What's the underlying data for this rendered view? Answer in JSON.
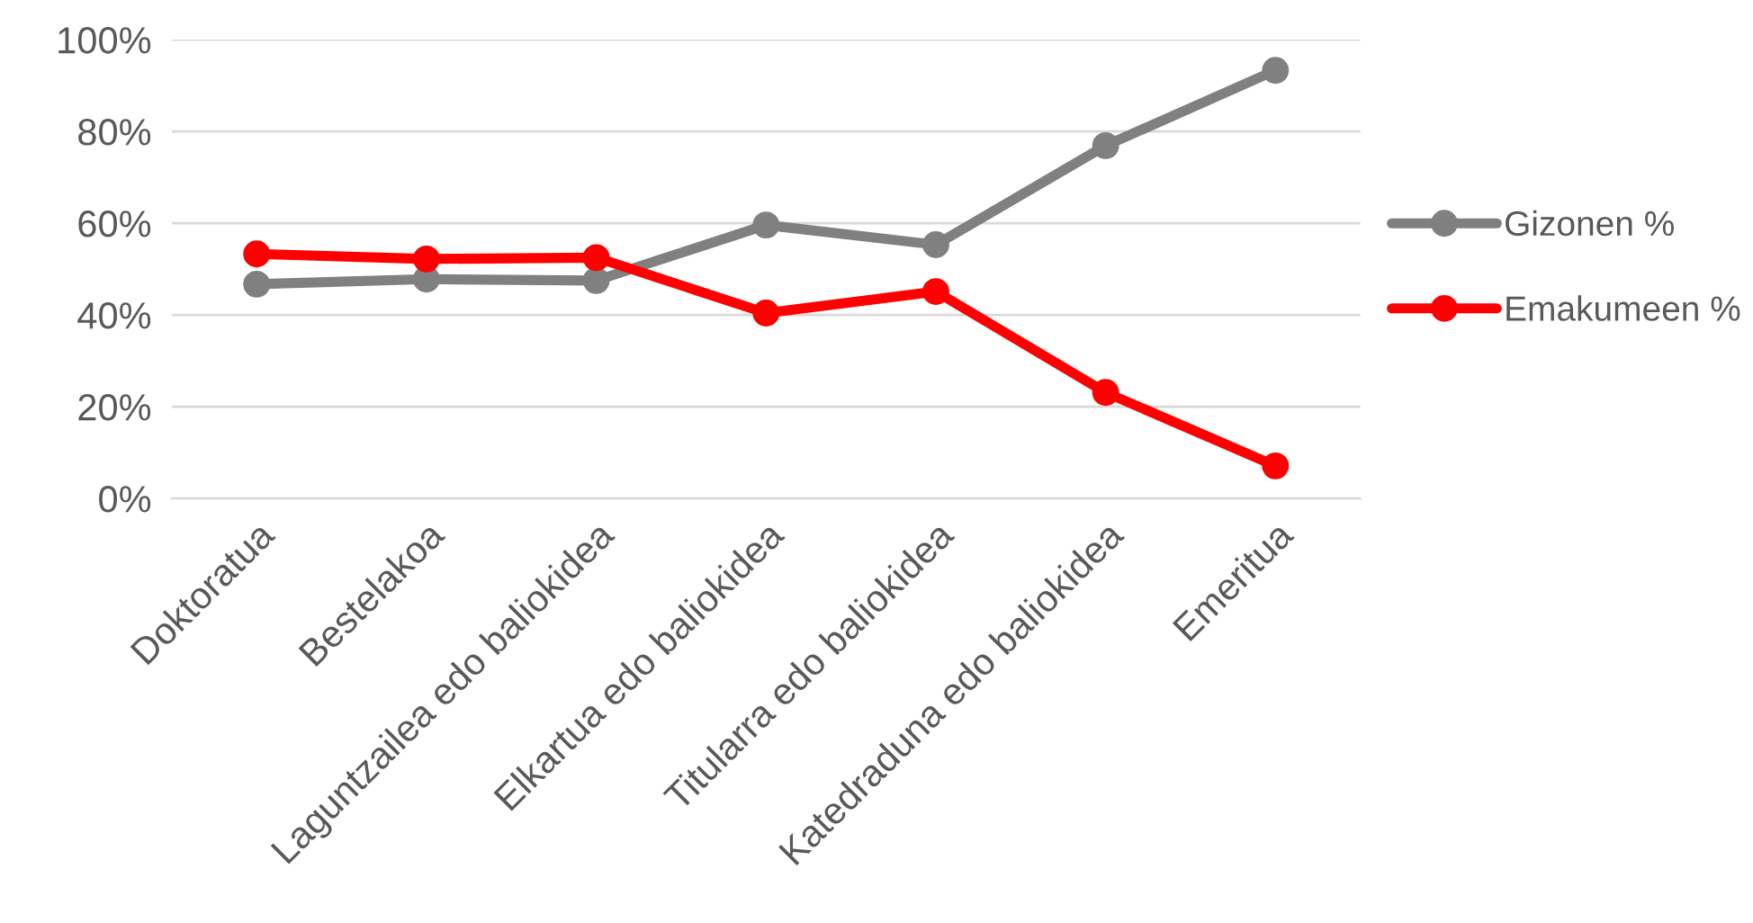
{
  "chart_data": {
    "type": "line",
    "categories": [
      "Doktoratua",
      "Bestelakoa",
      "Laguntzailea edo baliokidea",
      "Elkartua edo baliokidea",
      "Titularra edo baliokidea",
      "Katedraduna edo baliokidea",
      "Emeritua"
    ],
    "series": [
      {
        "name": "Gizonen %",
        "color": "#808080",
        "values": [
          46.7,
          47.8,
          47.5,
          59.6,
          55.3,
          76.9,
          93.3
        ]
      },
      {
        "name": "Emakumeen %",
        "color": "#ff0000",
        "values": [
          53.3,
          52.2,
          52.5,
          40.4,
          45.1,
          23.1,
          7.1
        ]
      }
    ],
    "ylim": [
      0,
      100
    ],
    "yticks": [
      {
        "value": 0,
        "label": "0%"
      },
      {
        "value": 20,
        "label": "20%"
      },
      {
        "value": 40,
        "label": "40%"
      },
      {
        "value": 60,
        "label": "60%"
      },
      {
        "value": 80,
        "label": "80%"
      },
      {
        "value": 100,
        "label": "100%"
      }
    ],
    "grid": "y",
    "legend": "right",
    "marker": "circle",
    "line_style": "solid"
  }
}
